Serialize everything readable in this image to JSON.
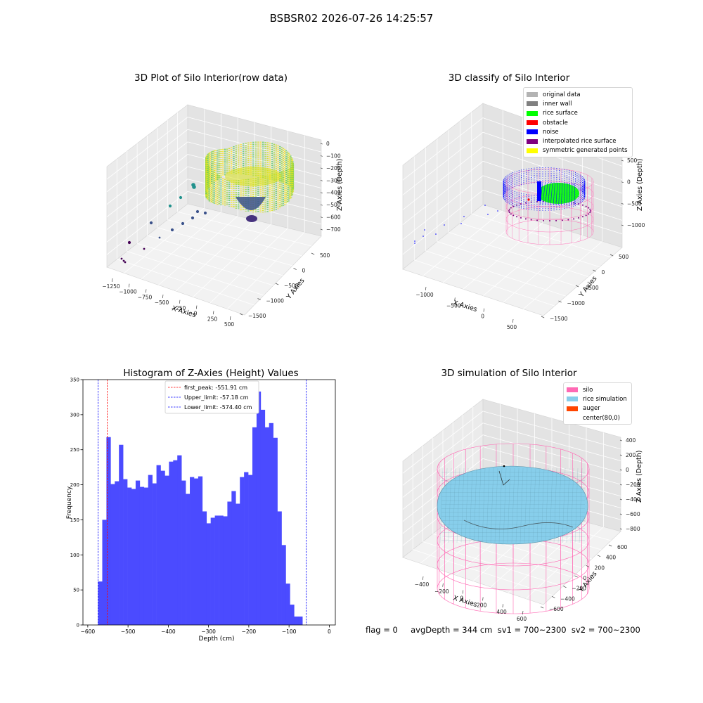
{
  "suptitle": "BSBSR02 2026-07-26 14:25:57",
  "status_text": "flag = 0     avgDepth = 344 cm  sv1 = 700~2300  sv2 = 700~2300",
  "colors": {
    "bar": "#4b4bff",
    "first_peak": "#ff0000",
    "limits": "#0000ff",
    "silo": "#ff69b4",
    "rice_simulation": "#87ceeb",
    "auger": "#ff4500",
    "pane": "#f2f2f2",
    "grid": "#dcdcdc"
  },
  "panels": {
    "raw": {
      "title": "3D Plot of Silo Interior(row data)",
      "xlabel": "X Axies",
      "ylabel": "Y Axies",
      "zlabel": "Z Axies (Depth)",
      "xticks": [
        "−1250",
        "−1000",
        "−750",
        "−500",
        "−250",
        "0",
        "250",
        "500"
      ],
      "yticks": [
        "500",
        "0",
        "−500",
        "−1000",
        "−1500"
      ],
      "zticks": [
        "0",
        "−100",
        "−200",
        "−300",
        "−400",
        "−500",
        "−600",
        "−700"
      ]
    },
    "classify": {
      "title": "3D classify of Silo Interior",
      "xlabel": "X Axies",
      "ylabel": "Y Axies",
      "zlabel": "Z Axies (Depth)",
      "xticks": [
        "−1000",
        "−500",
        "0",
        "500"
      ],
      "yticks": [
        "500",
        "0",
        "−500",
        "−1000",
        "−1500"
      ],
      "zticks": [
        "500",
        "0",
        "−500",
        "−1000"
      ],
      "legend": [
        {
          "label": "original data",
          "color": "#b3b3b3"
        },
        {
          "label": "inner wall",
          "color": "#808080"
        },
        {
          "label": "rice surface",
          "color": "#00ff00"
        },
        {
          "label": "obstacle",
          "color": "#ff0000"
        },
        {
          "label": "noise",
          "color": "#0000ff"
        },
        {
          "label": "interpolated rice surface",
          "color": "#800080"
        },
        {
          "label": "symmetric generated points",
          "color": "#ffff00"
        }
      ]
    },
    "simulation": {
      "title": "3D simulation of Silo Interior",
      "xlabel": "X Axies",
      "ylabel": "Y Axies",
      "zlabel": "Z Axies (Depth)",
      "xticks": [
        "−400",
        "−200",
        "0",
        "200",
        "400",
        "600"
      ],
      "yticks": [
        "600",
        "400",
        "200",
        "0",
        "−200",
        "−400",
        "−600"
      ],
      "zticks": [
        "400",
        "200",
        "0",
        "−200",
        "−400",
        "−600",
        "−800"
      ],
      "legend": [
        {
          "label": "silo",
          "color": "#ff69b4"
        },
        {
          "label": "rice simulation",
          "color": "#87ceeb"
        },
        {
          "label": "auger",
          "color": "#ff4500"
        },
        {
          "label": "center(80,0)",
          "color": "#ffffff"
        }
      ]
    }
  },
  "chart_data": {
    "type": "bar",
    "title": "Histogram of Z-Axies (Height) Values",
    "xlabel": "Depth (cm)",
    "ylabel": "Frequency",
    "xlim": [
      -612,
      15
    ],
    "ylim": [
      0,
      350
    ],
    "xticks": [
      -600,
      -500,
      -400,
      -300,
      -200,
      -100,
      0
    ],
    "yticks": [
      0,
      50,
      100,
      150,
      200,
      250,
      300,
      350
    ],
    "bin_start": -574.4,
    "bin_width": 10.36,
    "values": [
      62,
      150,
      268,
      201,
      205,
      257,
      208,
      196,
      194,
      206,
      197,
      196,
      214,
      202,
      228,
      220,
      213,
      233,
      235,
      242,
      206,
      187,
      211,
      209,
      212,
      162,
      145,
      153,
      156,
      156,
      155,
      176,
      191,
      173,
      211,
      218,
      214,
      282,
      333,
      307,
      282,
      288,
      267,
      162,
      114,
      59,
      29,
      12,
      12
    ],
    "vlines": [
      {
        "label": "first_peak: -551.91 cm",
        "x": -551.91,
        "color": "#ff0000"
      },
      {
        "label": "Upper_limit: -57.18 cm",
        "x": -57.18,
        "color": "#0000ff"
      },
      {
        "label": "Lower_limit: -574.40 cm",
        "x": -574.4,
        "color": "#0000ff"
      }
    ],
    "legend_position": "top-center"
  }
}
